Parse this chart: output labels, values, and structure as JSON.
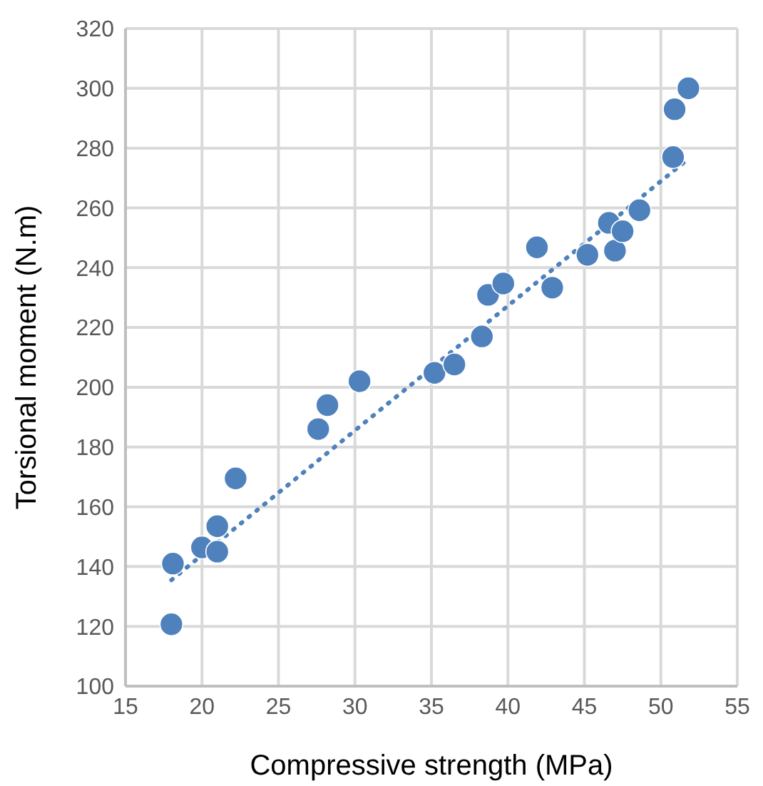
{
  "chart_data": {
    "type": "scatter",
    "xlabel": "Compressive strength (MPa)",
    "ylabel": "Torsional moment (N.m)",
    "xlim": [
      15,
      55
    ],
    "xticks": [
      15,
      20,
      25,
      30,
      35,
      40,
      45,
      50,
      55
    ],
    "ylim": [
      100,
      320
    ],
    "yticks": [
      100,
      120,
      140,
      160,
      180,
      200,
      220,
      240,
      260,
      280,
      300,
      320
    ],
    "grid": true,
    "marker": "circle",
    "series": [
      {
        "type": "scatter",
        "color": "#4f81bd",
        "x": [
          18.0,
          18.1,
          20.0,
          21.0,
          21.0,
          22.2,
          27.6,
          28.2,
          30.3,
          35.2,
          36.5,
          38.3,
          38.7,
          39.7,
          41.9,
          42.9,
          45.2,
          46.6,
          47.0,
          47.5,
          48.6,
          50.8,
          50.9,
          51.8
        ],
        "values": [
          120.7,
          141,
          146.4,
          145,
          153.5,
          169.5,
          186,
          194,
          202,
          204.8,
          207.6,
          217,
          230.9,
          234.7,
          246.8,
          233.3,
          244.3,
          255,
          245.7,
          252.2,
          259.2,
          277,
          293,
          300
        ]
      },
      {
        "type": "line",
        "color": "#4f81bd",
        "line_style": "dotted",
        "marker": "none",
        "x": [
          18.0,
          51.7
        ],
        "values": [
          135.5,
          276
        ]
      }
    ]
  }
}
